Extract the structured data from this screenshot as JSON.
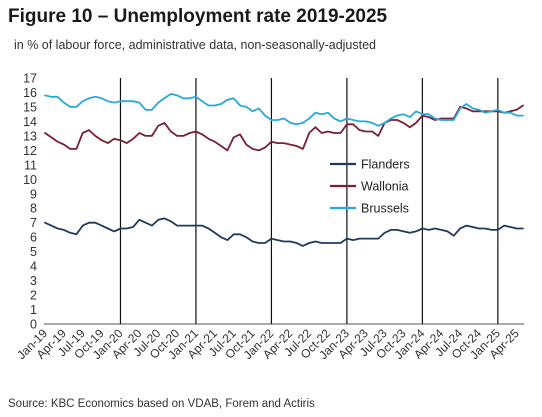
{
  "figure": {
    "title": "Figure 10 – Unemployment rate 2019-2025",
    "subtitle": "in % of labour force, administrative data, non-seasonally-adjusted",
    "source": "Source: KBC Economics based on VDAB, Forem and Actiris"
  },
  "chart_data": {
    "type": "line",
    "title": "Figure 10 – Unemployment rate 2019-2025",
    "subtitle": "in % of labour force, administrative data, non-seasonally-adjusted",
    "xlabel": "",
    "ylabel": "",
    "ylim": [
      0,
      17
    ],
    "yticks": [
      "0",
      "1",
      "2",
      "3",
      "4",
      "5",
      "6",
      "7",
      "8",
      "9",
      "10",
      "11",
      "12",
      "13",
      "14",
      "15",
      "16",
      "17"
    ],
    "x_tick_labels": [
      "Jan-19",
      "Apr-19",
      "Jul-19",
      "Oct-19",
      "Jan-20",
      "Apr-20",
      "Jul-20",
      "Oct-20",
      "Jan-21",
      "Apr-21",
      "Jul-21",
      "Oct-21",
      "Jan-22",
      "Apr-22",
      "Jul-22",
      "Oct-22",
      "Jan-23",
      "Apr-23",
      "Jul-23",
      "Oct-23",
      "Jan-24",
      "Apr-24",
      "Jul-24",
      "Oct-24",
      "Jan-25",
      "Apr-25"
    ],
    "x_start": "Jan-19",
    "x_end": "Apr-25",
    "year_separators": [
      "Jan-20",
      "Jan-21",
      "Jan-22",
      "Jan-23",
      "Jan-24",
      "Jan-25"
    ],
    "grid": false,
    "legend_position": "center-right",
    "series": [
      {
        "name": "Flanders",
        "color": "#1f3a5c",
        "values": [
          7.0,
          6.8,
          6.6,
          6.5,
          6.3,
          6.2,
          6.8,
          7.0,
          7.0,
          6.8,
          6.6,
          6.4,
          6.6,
          6.6,
          6.7,
          7.2,
          7.0,
          6.8,
          7.2,
          7.3,
          7.1,
          6.8,
          6.8,
          6.8,
          6.8,
          6.8,
          6.6,
          6.3,
          6.0,
          5.8,
          6.2,
          6.2,
          6.0,
          5.7,
          5.6,
          5.6,
          5.9,
          5.8,
          5.7,
          5.7,
          5.6,
          5.4,
          5.6,
          5.7,
          5.6,
          5.6,
          5.6,
          5.6,
          5.9,
          5.8,
          5.9,
          5.9,
          5.9,
          5.9,
          6.3,
          6.5,
          6.5,
          6.4,
          6.3,
          6.4,
          6.6,
          6.5,
          6.6,
          6.5,
          6.4,
          6.1,
          6.6,
          6.8,
          6.7,
          6.6,
          6.6,
          6.5,
          6.5,
          6.8,
          6.7,
          6.6,
          6.6
        ]
      },
      {
        "name": "Wallonia",
        "color": "#7a1f35",
        "values": [
          13.2,
          12.9,
          12.6,
          12.4,
          12.1,
          12.1,
          13.2,
          13.4,
          13.0,
          12.7,
          12.5,
          12.8,
          12.7,
          12.5,
          12.8,
          13.2,
          13.0,
          13.0,
          13.7,
          13.9,
          13.3,
          13.0,
          13.0,
          13.2,
          13.3,
          13.1,
          12.8,
          12.6,
          12.3,
          12.0,
          12.9,
          13.1,
          12.4,
          12.1,
          12.0,
          12.2,
          12.6,
          12.5,
          12.5,
          12.4,
          12.3,
          12.1,
          13.2,
          13.6,
          13.2,
          13.3,
          13.2,
          13.2,
          13.8,
          13.8,
          13.4,
          13.3,
          13.3,
          13.0,
          13.9,
          14.1,
          14.1,
          13.9,
          13.6,
          13.9,
          14.4,
          14.3,
          14.1,
          14.2,
          14.2,
          14.2,
          15.0,
          14.9,
          14.7,
          14.7,
          14.7,
          14.7,
          14.7,
          14.6,
          14.7,
          14.8,
          15.1
        ]
      },
      {
        "name": "Brussels",
        "color": "#29a9d8",
        "values": [
          15.8,
          15.7,
          15.7,
          15.3,
          15.0,
          15.0,
          15.4,
          15.6,
          15.7,
          15.6,
          15.4,
          15.3,
          15.4,
          15.4,
          15.4,
          15.3,
          14.8,
          14.8,
          15.3,
          15.6,
          15.9,
          15.8,
          15.6,
          15.6,
          15.7,
          15.4,
          15.1,
          15.1,
          15.2,
          15.5,
          15.6,
          15.1,
          15.0,
          14.7,
          14.9,
          14.4,
          14.1,
          14.1,
          14.2,
          13.9,
          13.8,
          13.9,
          14.2,
          14.6,
          14.5,
          14.6,
          14.2,
          14.0,
          14.2,
          14.1,
          14.0,
          14.0,
          13.9,
          13.7,
          13.9,
          14.2,
          14.4,
          14.5,
          14.3,
          14.7,
          14.5,
          14.5,
          14.2,
          14.1,
          14.1,
          14.1,
          14.9,
          15.2,
          14.9,
          14.8,
          14.6,
          14.7,
          14.8,
          14.6,
          14.6,
          14.4,
          14.4
        ]
      }
    ]
  }
}
